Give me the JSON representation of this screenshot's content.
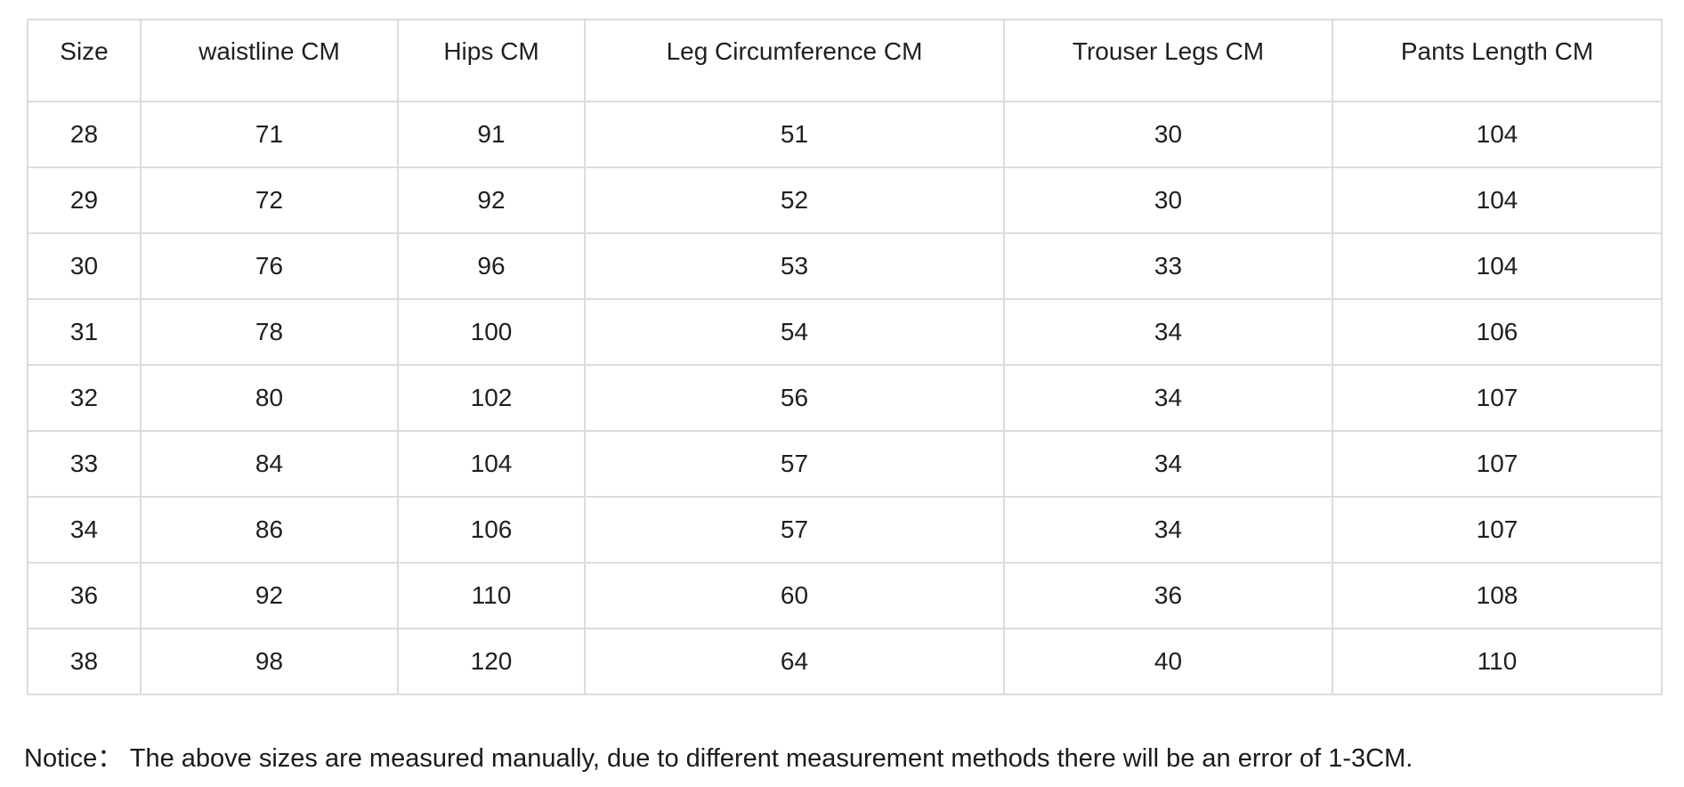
{
  "table": {
    "columns": [
      "Size",
      "waistline CM",
      "Hips CM",
      "Leg Circumference CM",
      "Trouser Legs CM",
      "Pants Length CM"
    ],
    "rows": [
      [
        "28",
        "71",
        "91",
        "51",
        "30",
        "104"
      ],
      [
        "29",
        "72",
        "92",
        "52",
        "30",
        "104"
      ],
      [
        "30",
        "76",
        "96",
        "53",
        "33",
        "104"
      ],
      [
        "31",
        "78",
        "100",
        "54",
        "34",
        "106"
      ],
      [
        "32",
        "80",
        "102",
        "56",
        "34",
        "107"
      ],
      [
        "33",
        "84",
        "104",
        "57",
        "34",
        "107"
      ],
      [
        "34",
        "86",
        "106",
        "57",
        "34",
        "107"
      ],
      [
        "36",
        "92",
        "110",
        "60",
        "36",
        "108"
      ],
      [
        "38",
        "98",
        "120",
        "64",
        "40",
        "110"
      ]
    ]
  },
  "notice": "Notice： The above sizes are measured manually, due to different measurement methods there will be an error of 1-3CM.",
  "colors": {
    "border": "#dcdcdc",
    "text": "#1f1f1f",
    "background": "#ffffff"
  },
  "chart_data": {
    "type": "table",
    "title": "",
    "columns": [
      "Size",
      "waistline CM",
      "Hips CM",
      "Leg Circumference CM",
      "Trouser Legs CM",
      "Pants Length CM"
    ],
    "rows": [
      [
        28,
        71,
        91,
        51,
        30,
        104
      ],
      [
        29,
        72,
        92,
        52,
        30,
        104
      ],
      [
        30,
        76,
        96,
        53,
        33,
        104
      ],
      [
        31,
        78,
        100,
        54,
        34,
        106
      ],
      [
        32,
        80,
        102,
        56,
        34,
        107
      ],
      [
        33,
        84,
        104,
        57,
        34,
        107
      ],
      [
        34,
        86,
        106,
        57,
        34,
        107
      ],
      [
        36,
        92,
        110,
        60,
        36,
        108
      ],
      [
        38,
        98,
        120,
        64,
        40,
        110
      ]
    ],
    "notes": "Notice： The above sizes are measured manually, due to different measurement methods there will be an error of 1-3CM.",
    "layout_hints": {
      "grid": "on",
      "header_row": true,
      "cell_alignment": "center"
    }
  }
}
